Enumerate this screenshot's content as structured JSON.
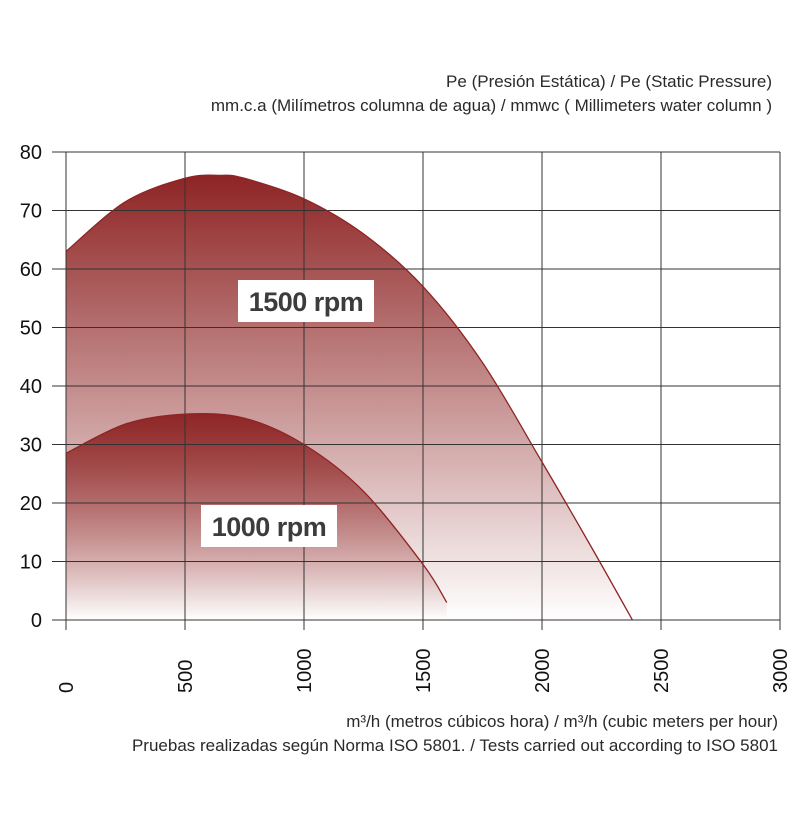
{
  "header": {
    "ylabel_line1": "Pe (Presión Estática) /  Pe (Static Pressure)",
    "ylabel_line2": "mm.c.a (Milímetros columna de agua) / mmwc ( Millimeters water column )"
  },
  "footer": {
    "xlabel": "m³/h (metros cúbicos hora) / m³/h (cubic meters per hour)",
    "note": "Pruebas realizadas según Norma ISO 5801. / Tests carried out according to ISO 5801"
  },
  "chart_data": {
    "type": "area",
    "title": "",
    "xlabel": "m³/h (metros cúbicos hora) / m³/h (cubic meters per hour)",
    "ylabel": "Pe (Presión Estática) /  Pe (Static Pressure) — mm.c.a (Milímetros columna de agua) / mmwc ( Millimeters water column )",
    "xlim": [
      0,
      3000
    ],
    "ylim": [
      0,
      80
    ],
    "x_ticks": [
      "0",
      "500",
      "1000",
      "1500",
      "2000",
      "2500",
      "3000"
    ],
    "y_ticks": [
      "0",
      "10",
      "20",
      "30",
      "40",
      "50",
      "60",
      "70",
      "80"
    ],
    "grid": true,
    "colors": {
      "fill_top": "#8e2424",
      "line": "#8e2424",
      "grid": "#333333"
    },
    "series": [
      {
        "name": "1500 rpm",
        "x": [
          0,
          250,
          500,
          650,
          750,
          1000,
          1250,
          1500,
          1750,
          2000,
          2200,
          2380
        ],
        "y": [
          63,
          71.5,
          75.5,
          76,
          75.5,
          72,
          66,
          57,
          44,
          27,
          13,
          0
        ]
      },
      {
        "name": "1000 rpm",
        "x": [
          0,
          250,
          500,
          750,
          1000,
          1250,
          1500,
          1600
        ],
        "y": [
          28.5,
          33.5,
          35.2,
          34.5,
          30,
          22,
          9.5,
          3
        ]
      }
    ]
  }
}
